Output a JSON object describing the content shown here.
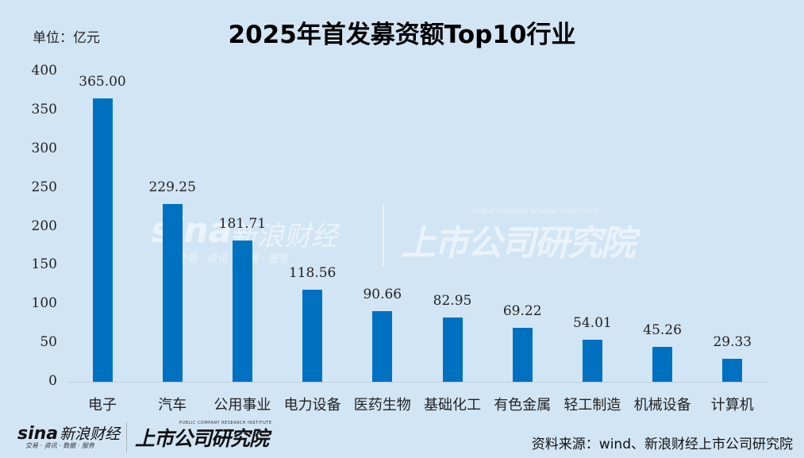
{
  "header": {
    "title": "2025年首发募资额Top10行业",
    "unit": "单位：亿元"
  },
  "footer": {
    "source": "资料来源：wind、新浪财经上市公司研究院",
    "logo_sina_text": "sina",
    "logo_sina_cn": "新浪财经",
    "logo_sina_sub": "交易 · 资讯 · 数据 · 服务",
    "logo_inst_cn": "上市公司研究院",
    "logo_inst_en": "PUBLIC COMPANY RESEARCH INSTITUTE"
  },
  "watermark": {
    "sina_text": "sina",
    "sina_cn": "新浪财经",
    "sina_sub": "交易 · 资讯 · 数据 · 服务",
    "inst_cn": "上市公司研究院",
    "inst_en": "PUBLIC COMPANY RESEARCH INSTITUTE"
  },
  "colors": {
    "background": "#d2e5f4",
    "bar": "#0070c0",
    "title": "#000000"
  },
  "chart_data": {
    "type": "bar",
    "title": "2025年首发募资额Top10行业",
    "xlabel": "",
    "ylabel": "单位：亿元",
    "ylim": [
      0,
      400
    ],
    "yticks": [
      0,
      50,
      100,
      150,
      200,
      250,
      300,
      350,
      400
    ],
    "grid": false,
    "legend": null,
    "categories": [
      "电子",
      "汽车",
      "公用事业",
      "电力设备",
      "医药生物",
      "基础化工",
      "有色金属",
      "轻工制造",
      "机械设备",
      "计算机"
    ],
    "values": [
      365.0,
      229.25,
      181.71,
      118.56,
      90.66,
      82.95,
      69.22,
      54.01,
      45.26,
      29.33
    ],
    "value_labels": [
      "365.00",
      "229.25",
      "181.71",
      "118.56",
      "90.66",
      "82.95",
      "69.22",
      "54.01",
      "45.26",
      "29.33"
    ]
  }
}
